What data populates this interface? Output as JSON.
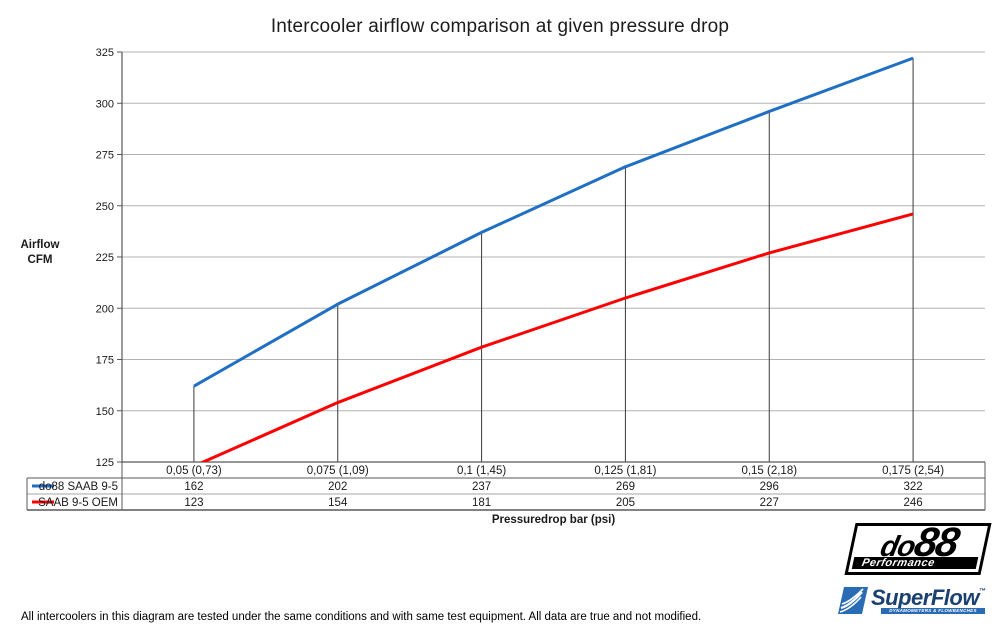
{
  "chart_data": {
    "type": "line",
    "title": "Intercooler airflow comparison at given pressure drop",
    "categories": [
      "0,05 (0,73)",
      "0,075 (1,09)",
      "0,1 (1,45)",
      "0,125 (1,81)",
      "0,15 (2,18)",
      "0,175 (2,54)"
    ],
    "series": [
      {
        "name": "do88 SAAB 9-5",
        "color": "#1F6FC4",
        "values": [
          162,
          202,
          237,
          269,
          296,
          322
        ]
      },
      {
        "name": "SAAB 9-5 OEM",
        "color": "#FF0000",
        "values": [
          123,
          154,
          181,
          205,
          227,
          246
        ]
      }
    ],
    "xlabel": "Pressuredrop bar (psi)",
    "ylabel_lines": [
      "Airflow",
      "CFM"
    ],
    "ylim": [
      125,
      325
    ],
    "ytick_step": 25,
    "grid": true,
    "drop_lines": true,
    "legend_position": "table-left",
    "value_table": true
  },
  "footer": {
    "disclaimer": "All intercoolers in this diagram are tested under the same conditions and with same test equipment. All data are true and not modified."
  },
  "logos": {
    "do88": {
      "part1": "do",
      "part2": "88",
      "subtitle": "Performance"
    },
    "superflow": {
      "name": "SuperFlow",
      "trademark": "™",
      "tagline": "DYNAMOMETERS & FLOWBENCHES"
    }
  },
  "colors": {
    "gridline": "#B3B3B3",
    "axis": "#595959",
    "drop_line": "#3A3A3A",
    "table_border_outer": "#595959",
    "table_border_inner": "#A6A6A6",
    "text": "#1A1A1A",
    "superflow_blue": "#2A6CB4",
    "superflow_navy": "#1A4070"
  }
}
